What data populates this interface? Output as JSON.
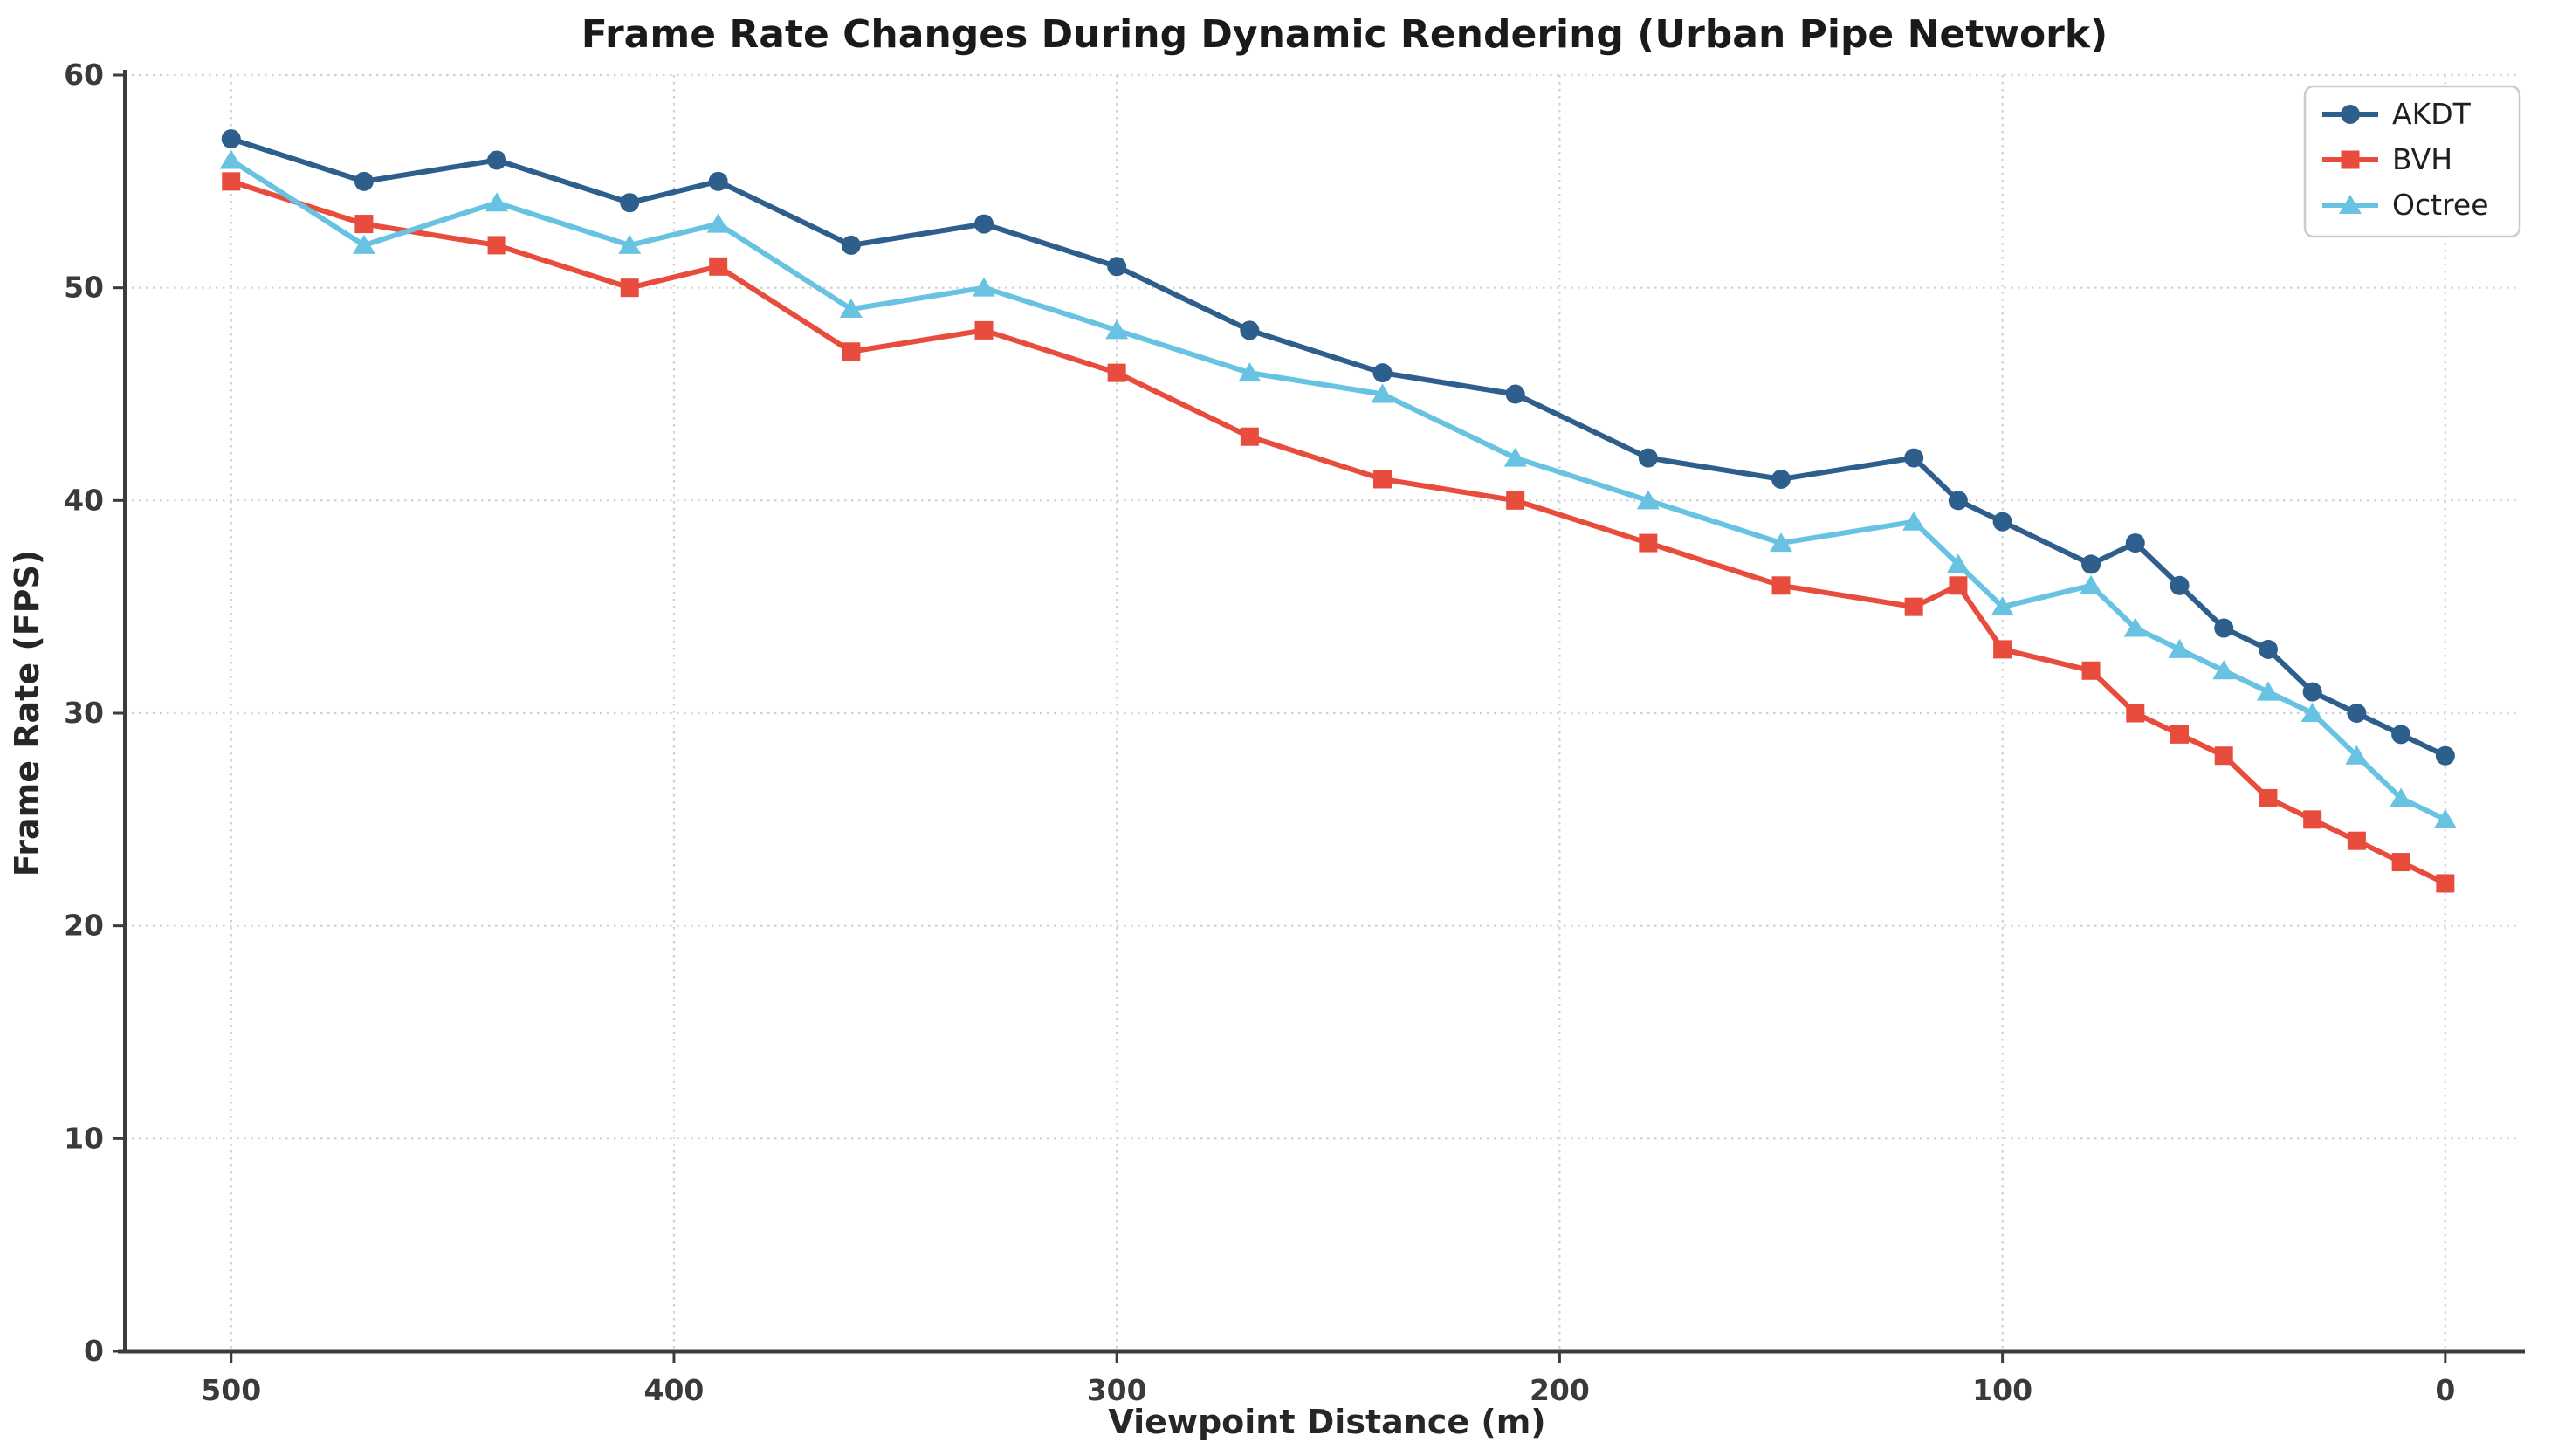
{
  "chart_data": {
    "type": "line",
    "title": "Frame Rate Changes During Dynamic Rendering (Urban Pipe Network)",
    "xlabel": "Viewpoint Distance (m)",
    "ylabel": "Frame Rate (FPS)",
    "x": [
      500,
      470,
      440,
      410,
      390,
      360,
      330,
      300,
      270,
      240,
      210,
      180,
      150,
      120,
      110,
      100,
      80,
      70,
      60,
      50,
      40,
      30,
      20,
      10,
      0
    ],
    "series": [
      {
        "name": "AKDT",
        "marker": "circle",
        "color": "#2e5f8c",
        "values": [
          57,
          55,
          56,
          54,
          55,
          52,
          53,
          51,
          48,
          46,
          45,
          42,
          41,
          42,
          40,
          39,
          37,
          38,
          36,
          34,
          33,
          31,
          30,
          29,
          28
        ]
      },
      {
        "name": "BVH",
        "marker": "square",
        "color": "#e74c3c",
        "values": [
          55,
          53,
          52,
          50,
          51,
          47,
          48,
          46,
          43,
          41,
          40,
          38,
          36,
          35,
          36,
          33,
          32,
          30,
          29,
          28,
          26,
          25,
          24,
          23,
          22
        ]
      },
      {
        "name": "Octree",
        "marker": "triangle",
        "color": "#68c3e2",
        "values": [
          56,
          52,
          54,
          52,
          53,
          49,
          50,
          48,
          46,
          45,
          42,
          40,
          38,
          39,
          37,
          35,
          36,
          34,
          33,
          32,
          31,
          30,
          28,
          26,
          25
        ]
      }
    ],
    "x_ticks": [
      "500",
      "400",
      "300",
      "200",
      "100",
      "0"
    ],
    "x_tick_values": [
      500,
      400,
      300,
      200,
      100,
      0
    ],
    "y_ticks": [
      "0",
      "10",
      "20",
      "30",
      "40",
      "50",
      "60"
    ],
    "y_tick_values": [
      0,
      10,
      20,
      30,
      40,
      50,
      60
    ],
    "xlim": [
      524,
      -16
    ],
    "ylim": [
      0,
      60
    ],
    "x_axis_reversed": true,
    "grid": "dotted",
    "legend": {
      "position": "upper right",
      "entries": [
        "AKDT",
        "BVH",
        "Octree"
      ]
    }
  },
  "style": {
    "background": "#ffffff",
    "grid_color": "#cfcfcf",
    "spine_color": "#3c3c3c",
    "tick_color": "#3c3c3c",
    "legend_border": "#cbcbcb",
    "legend_bg": "#ffffff"
  }
}
